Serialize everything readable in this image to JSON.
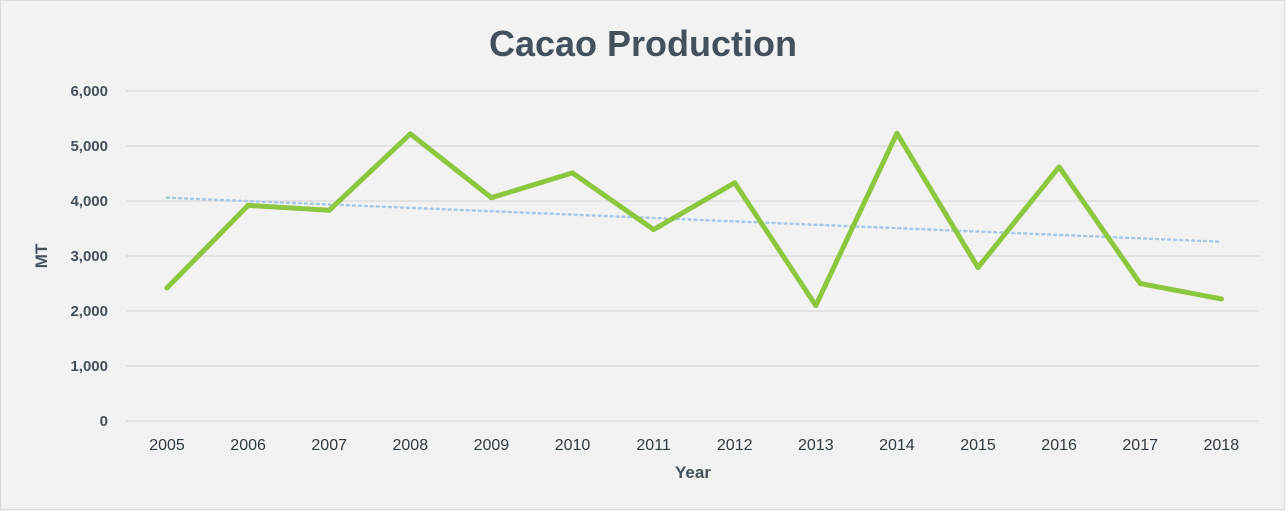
{
  "chart_data": {
    "type": "line",
    "title": "Cacao Production",
    "xlabel": "Year",
    "ylabel": "MT",
    "categories": [
      "2005",
      "2006",
      "2007",
      "2008",
      "2009",
      "2010",
      "2011",
      "2012",
      "2013",
      "2014",
      "2015",
      "2016",
      "2017",
      "2018"
    ],
    "series": [
      {
        "values": [
          2420,
          3920,
          3830,
          5220,
          4060,
          4510,
          3480,
          4330,
          2100,
          5230,
          2790,
          4620,
          2500,
          2220
        ],
        "color": "#8dc63f"
      }
    ],
    "trendline": {
      "style": "dotted linear",
      "color": "#a9c9e8",
      "start": 4060,
      "end": 3260
    },
    "ylim": [
      0,
      6000
    ],
    "yticks": [
      0,
      1000,
      2000,
      3000,
      4000,
      5000,
      6000
    ],
    "ytick_labels": [
      "0",
      "1,000",
      "2,000",
      "3,000",
      "4,000",
      "5,000",
      "6,000"
    ],
    "grid": true,
    "legend": "none"
  }
}
